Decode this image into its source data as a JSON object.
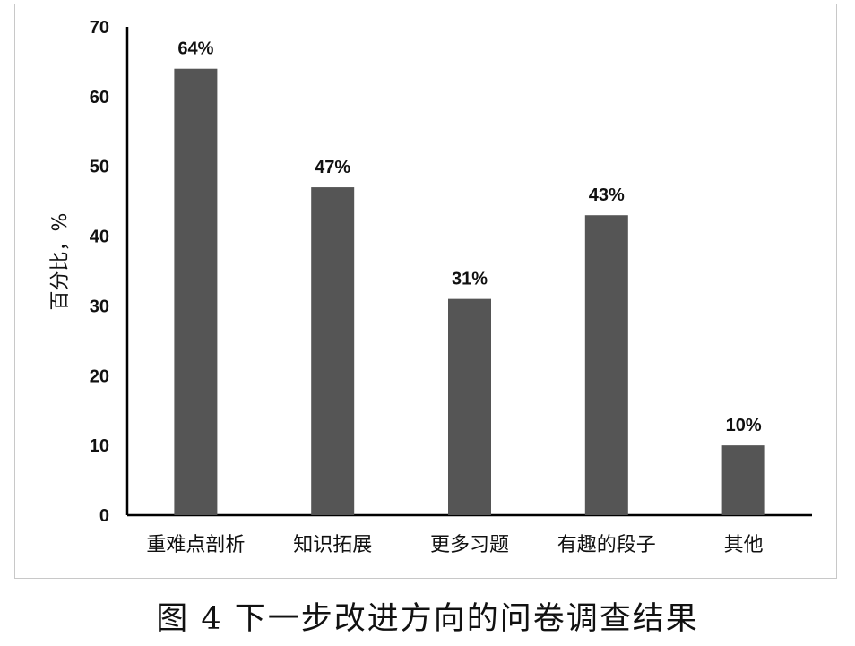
{
  "figure_caption": "图 4  下一步改进方向的问卷调查结果",
  "chart_data": {
    "type": "bar",
    "title": "",
    "xlabel": "",
    "ylabel": "百分比，%",
    "categories": [
      "重难点剖析",
      "知识拓展",
      "更多习题",
      "有趣的段子",
      "其他"
    ],
    "values": [
      64,
      47,
      31,
      43,
      10
    ],
    "data_labels": [
      "64%",
      "47%",
      "31%",
      "43%",
      "10%"
    ],
    "ylim": [
      0,
      70
    ],
    "yticks": [
      "0",
      "10",
      "20",
      "30",
      "40",
      "50",
      "60",
      "70"
    ],
    "grid": false,
    "bar_color": "#555555",
    "axis_color": "#000000"
  }
}
